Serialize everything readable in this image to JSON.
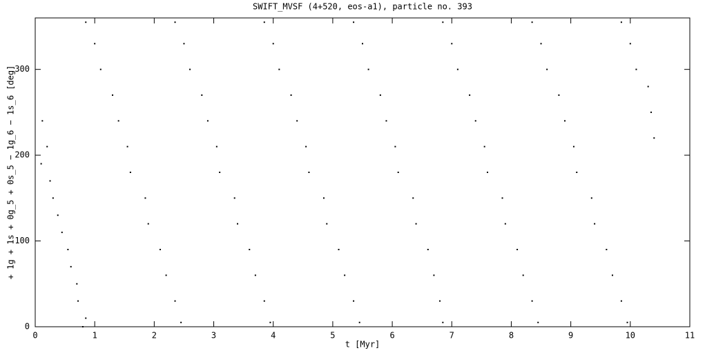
{
  "chart_data": {
    "type": "scatter",
    "title": "SWIFT_MVSF (4+520, eos-a1), particle no. 393",
    "x_label": "t [Myr]",
    "y_label": "+ 1g + 1s + 0g_5 + 0s_5 − 1g_6 − 1s_6 [deg]",
    "xlim": [
      0,
      11
    ],
    "ylim": [
      0,
      360
    ],
    "xticks": [
      0,
      1,
      2,
      3,
      4,
      5,
      6,
      7,
      8,
      9,
      10,
      11
    ],
    "yticks": [
      0,
      100,
      200,
      300
    ],
    "color": "#000000",
    "x": [
      0.12,
      0.2,
      0.1,
      0.25,
      0.3,
      0.38,
      0.45,
      0.55,
      0.6,
      0.7,
      0.72,
      0.85,
      0.8,
      0.85,
      1.0,
      1.1,
      1.3,
      1.4,
      1.55,
      1.6,
      1.85,
      1.9,
      2.1,
      2.2,
      2.35,
      2.45,
      2.35,
      2.5,
      2.6,
      2.8,
      2.9,
      3.05,
      3.1,
      3.35,
      3.4,
      3.6,
      3.7,
      3.85,
      3.95,
      3.85,
      4.0,
      4.1,
      4.3,
      4.4,
      4.55,
      4.6,
      4.85,
      4.9,
      5.1,
      5.2,
      5.35,
      5.45,
      5.35,
      5.5,
      5.6,
      5.8,
      5.9,
      6.05,
      6.1,
      6.35,
      6.4,
      6.6,
      6.7,
      6.8,
      6.85,
      6.85,
      7.0,
      7.1,
      7.3,
      7.4,
      7.55,
      7.6,
      7.85,
      7.9,
      8.1,
      8.2,
      8.35,
      8.45,
      8.35,
      8.5,
      8.6,
      8.8,
      8.9,
      9.05,
      9.1,
      9.35,
      9.4,
      9.6,
      9.7,
      9.85,
      9.95,
      9.85,
      10.0,
      10.1,
      10.3,
      10.35,
      10.4
    ],
    "values": [
      240,
      210,
      190,
      170,
      150,
      130,
      110,
      90,
      70,
      50,
      30,
      10,
      0,
      355,
      330,
      300,
      270,
      240,
      210,
      180,
      150,
      120,
      90,
      60,
      30,
      5,
      355,
      330,
      300,
      270,
      240,
      210,
      180,
      150,
      120,
      90,
      60,
      30,
      5,
      355,
      330,
      300,
      270,
      240,
      210,
      180,
      150,
      120,
      90,
      60,
      30,
      5,
      355,
      330,
      300,
      270,
      240,
      210,
      180,
      150,
      120,
      90,
      60,
      30,
      5,
      355,
      330,
      300,
      270,
      240,
      210,
      180,
      150,
      120,
      90,
      60,
      30,
      5,
      355,
      330,
      300,
      270,
      240,
      210,
      180,
      150,
      120,
      90,
      60,
      30,
      5,
      355,
      330,
      300,
      280,
      250,
      220
    ]
  }
}
